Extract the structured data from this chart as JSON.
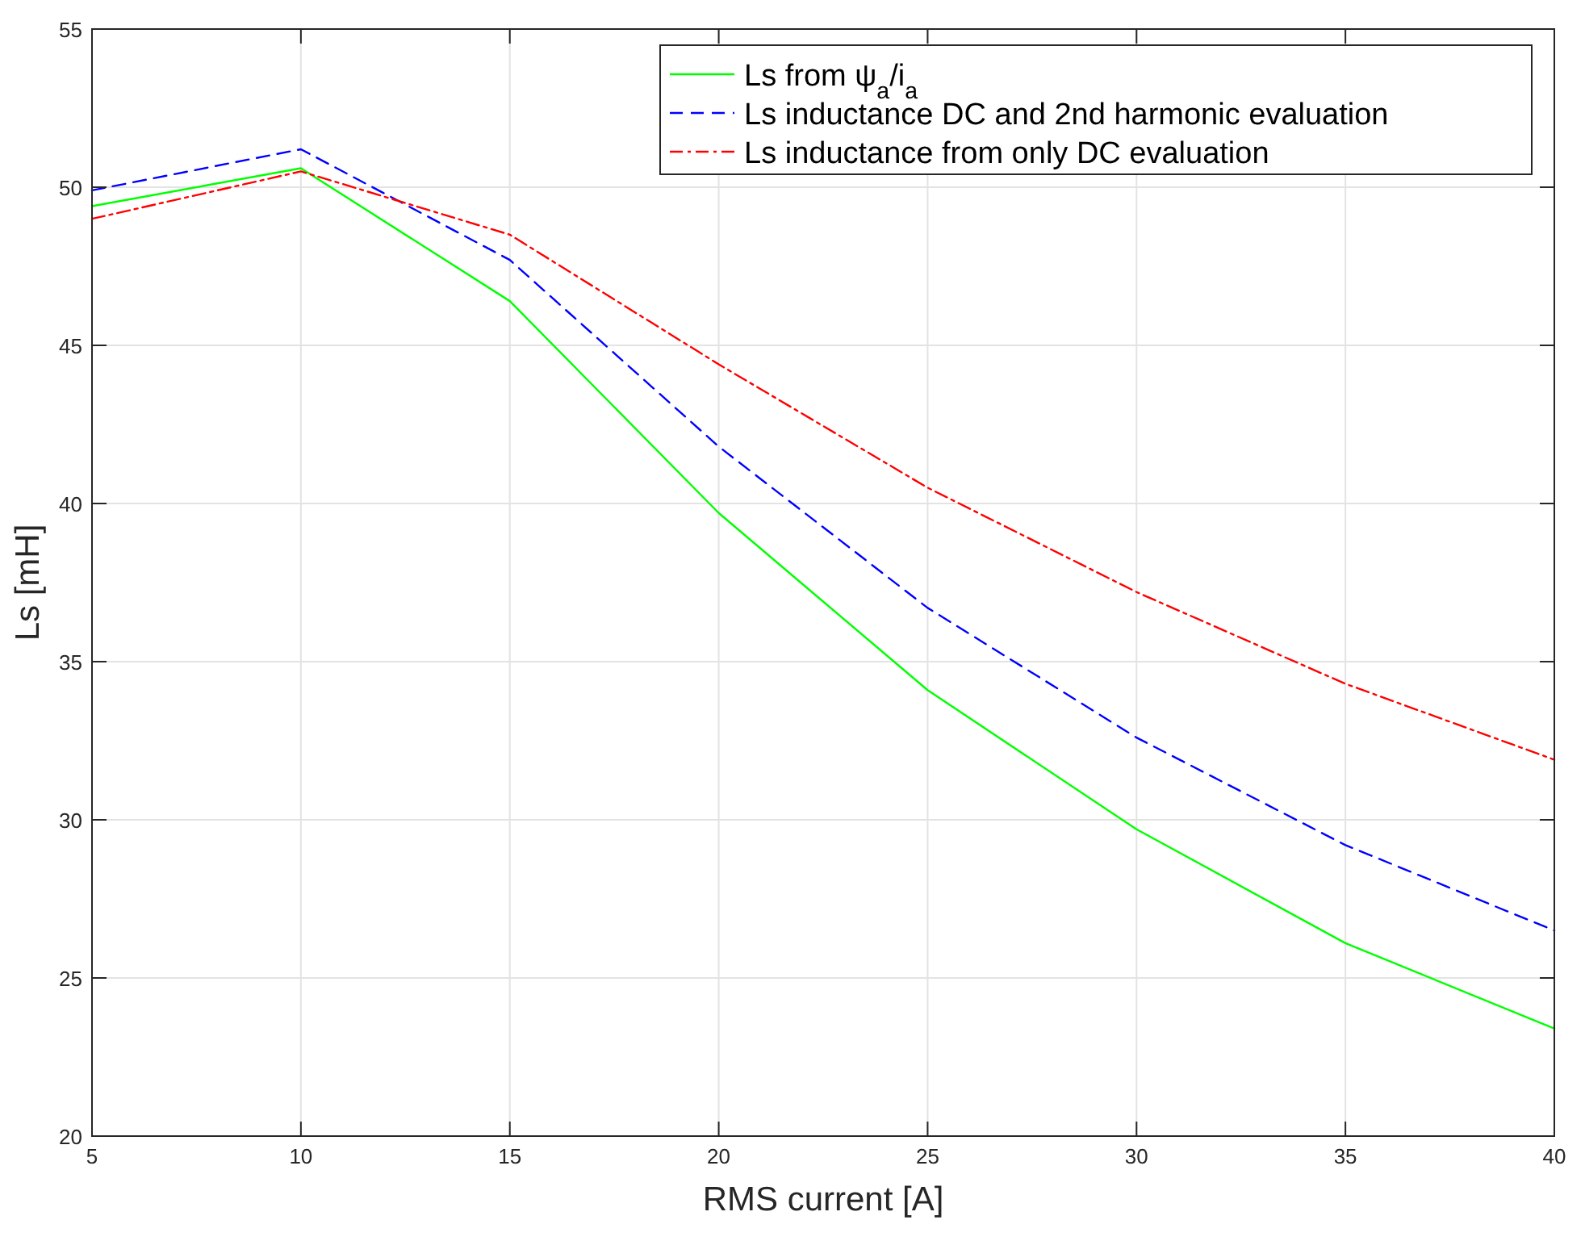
{
  "chart_data": {
    "type": "line",
    "xlabel": "RMS current [A]",
    "ylabel": "Ls [mH]",
    "x": [
      5,
      10,
      15,
      20,
      25,
      30,
      35,
      40
    ],
    "xlim": [
      5,
      40
    ],
    "xticks": [
      5,
      10,
      15,
      20,
      25,
      30,
      35,
      40
    ],
    "ylim": [
      20,
      55
    ],
    "yticks": [
      20,
      25,
      30,
      35,
      40,
      45,
      50,
      55
    ],
    "grid": true,
    "legend": "top right",
    "marker": "none",
    "series": [
      {
        "name": "Ls from ψ$_{a}$/i$_{a}$",
        "color": "#00ff00",
        "line_style": "solid",
        "values": [
          49.4,
          50.6,
          46.4,
          39.7,
          34.1,
          29.7,
          26.1,
          23.4
        ]
      },
      {
        "name": "Ls inductance DC and 2nd harmonic evaluation",
        "color": "#0000ff",
        "line_style": "dashed",
        "values": [
          49.9,
          51.2,
          47.7,
          41.8,
          36.7,
          32.6,
          29.2,
          26.5
        ]
      },
      {
        "name": "Ls inductance from only DC evaluation",
        "color": "#ff0000",
        "line_style": "dashdot",
        "values": [
          49.0,
          50.5,
          48.5,
          44.4,
          40.5,
          37.2,
          34.3,
          31.9
        ]
      }
    ]
  }
}
